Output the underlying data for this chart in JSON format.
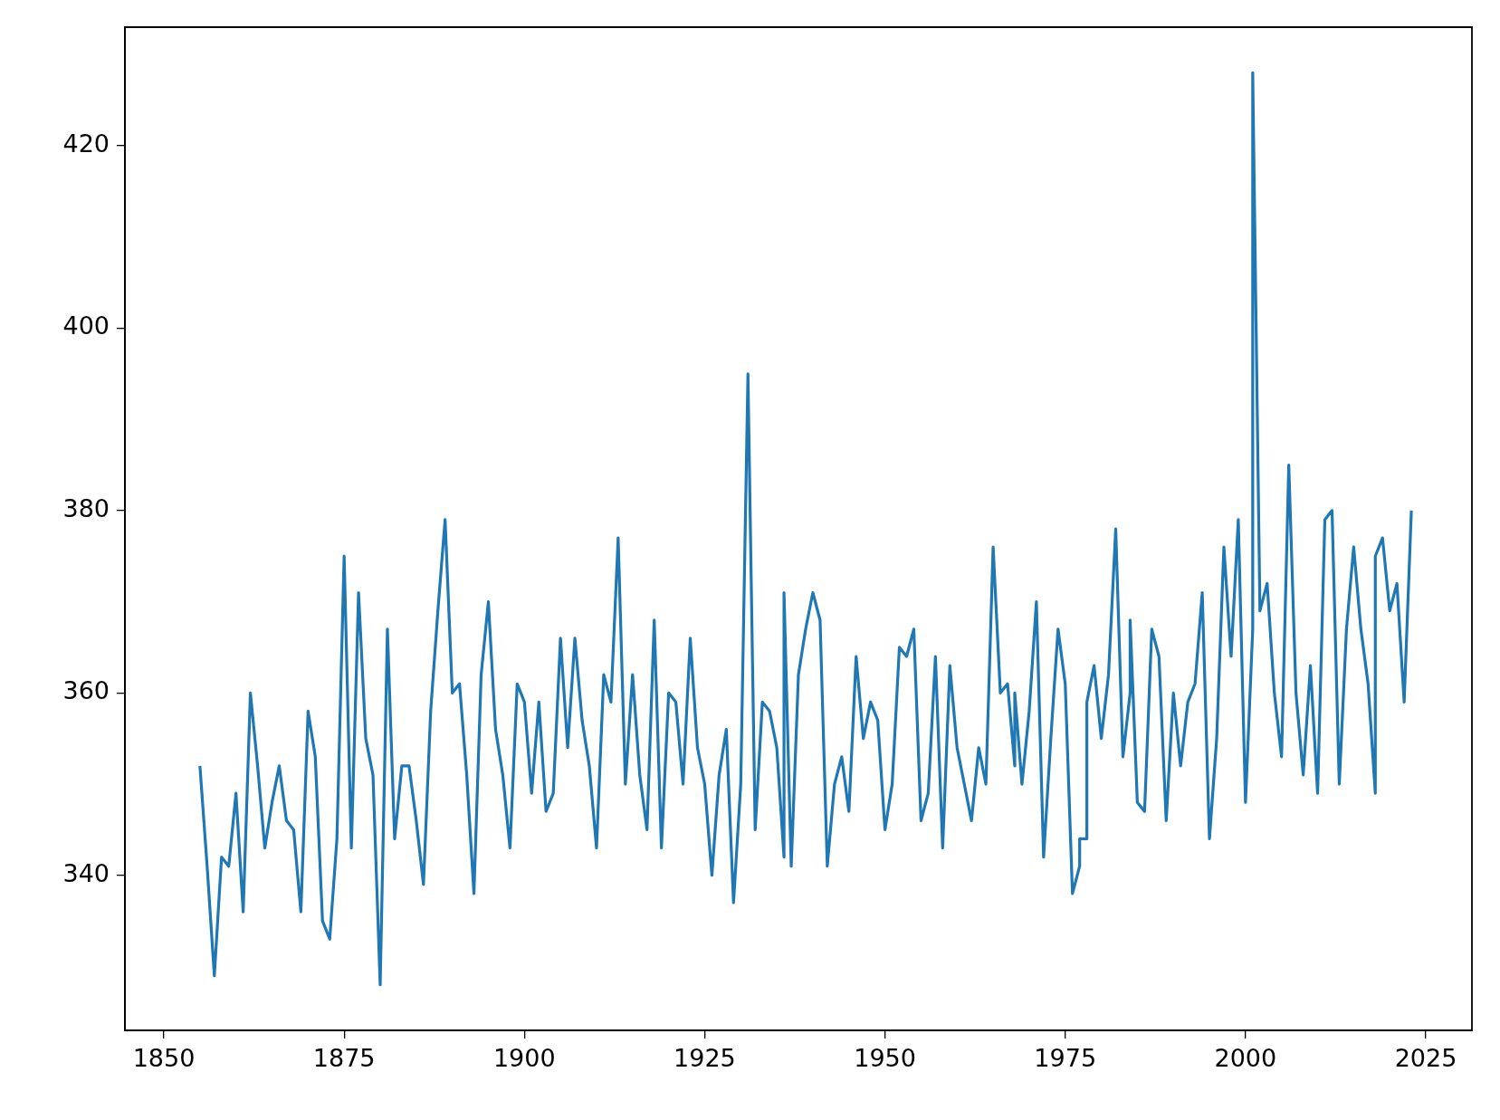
{
  "chart_data": {
    "type": "line",
    "xlim": [
      1844.6,
      2031.4
    ],
    "ylim": [
      323,
      433
    ],
    "xticks": [
      1850,
      1875,
      1900,
      1925,
      1950,
      1975,
      2000,
      2025
    ],
    "yticks": [
      340,
      360,
      380,
      400,
      420
    ],
    "grid": false,
    "legend": false,
    "marker": "none",
    "line_style": "solid",
    "series": [
      {
        "color": "#1f77b4",
        "x": [
          1855,
          1856,
          1857,
          1858,
          1859,
          1860,
          1861,
          1862,
          1863,
          1864,
          1865,
          1866,
          1867,
          1868,
          1869,
          1870,
          1871,
          1872,
          1873,
          1874,
          1875,
          1876,
          1877,
          1878,
          1879,
          1880,
          1881,
          1882,
          1883,
          1884,
          1885,
          1886,
          1887,
          1888,
          1889,
          1890,
          1891,
          1892,
          1893,
          1894,
          1895,
          1896,
          1897,
          1898,
          1899,
          1900,
          1901,
          1902,
          1903,
          1904,
          1905,
          1906,
          1907,
          1908,
          1909,
          1910,
          1911,
          1912,
          1913,
          1914,
          1915,
          1916,
          1917,
          1918,
          1919,
          1920,
          1921,
          1922,
          1923,
          1924,
          1925,
          1926,
          1927,
          1928,
          1929,
          1930,
          1931,
          1932,
          1933,
          1934,
          1935,
          1936,
          1936,
          1937,
          1938,
          1939,
          1940,
          1941,
          1942,
          1943,
          1944,
          1945,
          1946,
          1947,
          1948,
          1949,
          1950,
          1951,
          1952,
          1953,
          1954,
          1955,
          1956,
          1957,
          1958,
          1959,
          1960,
          1961,
          1962,
          1963,
          1964,
          1965,
          1966,
          1967,
          1968,
          1968,
          1969,
          1970,
          1971,
          1972,
          1973,
          1974,
          1975,
          1976,
          1977,
          1977,
          1978,
          1978,
          1979,
          1980,
          1981,
          1982,
          1983,
          1984,
          1984,
          1985,
          1986,
          1987,
          1988,
          1989,
          1990,
          1991,
          1992,
          1993,
          1994,
          1995,
          1996,
          1997,
          1998,
          1999,
          2000,
          2001,
          2001,
          2002,
          2003,
          2004,
          2005,
          2006,
          2007,
          2008,
          2009,
          2010,
          2011,
          2012,
          2013,
          2014,
          2015,
          2016,
          2017,
          2018,
          2018,
          2019,
          2020,
          2021,
          2022,
          2023
        ],
        "values": [
          352,
          341,
          329,
          342,
          341,
          349,
          336,
          360,
          352,
          343,
          348,
          352,
          346,
          345,
          336,
          358,
          353,
          335,
          333,
          344,
          375,
          343,
          371,
          355,
          351,
          328,
          367,
          344,
          352,
          352,
          346,
          339,
          358,
          369,
          379,
          360,
          361,
          351,
          338,
          362,
          370,
          356,
          351,
          343,
          361,
          359,
          349,
          359,
          347,
          349,
          366,
          354,
          366,
          357,
          352,
          343,
          362,
          359,
          377,
          350,
          362,
          351,
          345,
          368,
          343,
          360,
          359,
          350,
          366,
          354,
          350,
          340,
          351,
          356,
          337,
          350,
          395,
          345,
          359,
          358,
          354,
          342,
          371,
          341,
          362,
          367,
          371,
          368,
          341,
          350,
          353,
          347,
          364,
          355,
          359,
          357,
          345,
          350,
          365,
          364,
          367,
          346,
          349,
          364,
          343,
          363,
          354,
          350,
          346,
          354,
          350,
          376,
          360,
          361,
          352,
          360,
          350,
          358,
          370,
          342,
          355,
          367,
          361,
          338,
          341,
          344,
          344,
          359,
          363,
          355,
          362,
          378,
          353,
          360,
          368,
          348,
          347,
          367,
          364,
          346,
          360,
          352,
          359,
          361,
          371,
          344,
          355,
          376,
          364,
          379,
          348,
          367,
          428,
          369,
          372,
          360,
          353,
          385,
          360,
          351,
          363,
          349,
          379,
          380,
          350,
          367,
          376,
          367,
          361,
          349,
          375,
          377,
          369,
          372,
          359,
          380
        ]
      }
    ]
  }
}
